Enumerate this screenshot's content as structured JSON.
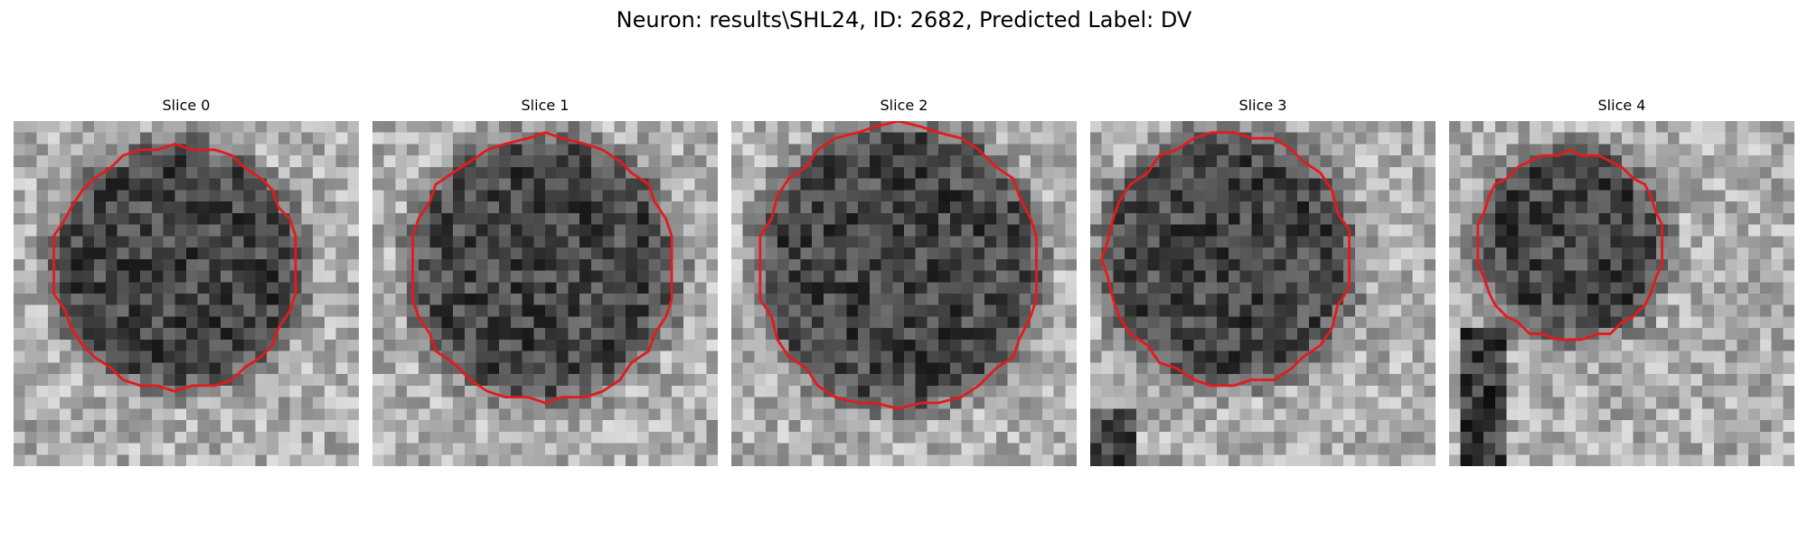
{
  "figure": {
    "title": "Neuron: results\\SHL24, ID: 2682, Predicted Label: DV"
  },
  "colors": {
    "contour": "#e41a1c",
    "background": "#ffffff",
    "text": "#000000"
  },
  "panels": [
    {
      "title": "Slice 0",
      "image": "grayscale noisy micrograph with dark roughly circular cell body",
      "contour_color": "#e41a1c"
    },
    {
      "title": "Slice 1",
      "image": "grayscale noisy micrograph with dark roughly circular cell body",
      "contour_color": "#e41a1c"
    },
    {
      "title": "Slice 2",
      "image": "grayscale noisy micrograph with dark roughly circular cell body",
      "contour_color": "#e41a1c"
    },
    {
      "title": "Slice 3",
      "image": "grayscale noisy micrograph with dark roughly circular cell body",
      "contour_color": "#e41a1c"
    },
    {
      "title": "Slice 4",
      "image": "grayscale noisy micrograph with dark roughly circular cell body",
      "contour_color": "#e41a1c"
    }
  ]
}
